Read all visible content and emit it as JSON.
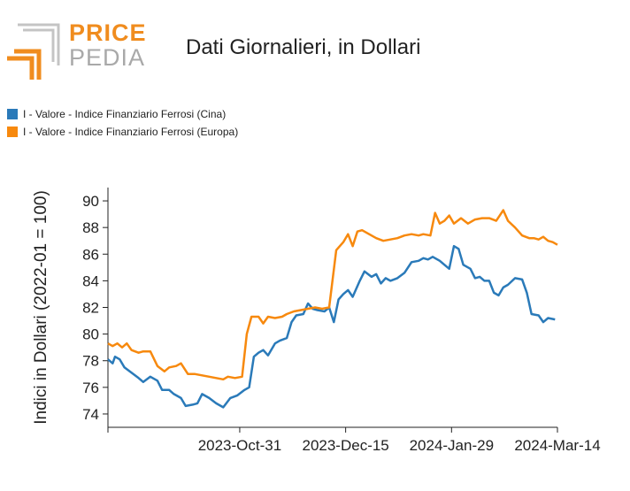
{
  "logo": {
    "line1": "PRICE",
    "line2": "PEDIA",
    "colors": {
      "orange": "#f08c1e",
      "grey": "#b3b3b3"
    }
  },
  "title": "Dati Giornalieri, in Dollari",
  "legend": [
    {
      "label": "I - Valore - Indice Finanziario Ferrosi (Cina)",
      "color": "#2a7ab9"
    },
    {
      "label": "I - Valore - Indice Finanziario Ferrosi (Europa)",
      "color": "#f7890e"
    }
  ],
  "chart_data": {
    "type": "line",
    "ylabel": "Indici in Dollari (2022-01 = 100)",
    "xlabel": "",
    "ylim": [
      73,
      91
    ],
    "yticks": [
      74,
      76,
      78,
      80,
      82,
      84,
      86,
      88,
      90
    ],
    "xlim": [
      "2023-09-05",
      "2024-03-14"
    ],
    "xticks": [
      {
        "date": "2023-10-31",
        "label": "2023-Oct-31"
      },
      {
        "date": "2023-12-15",
        "label": "2023-Dec-15"
      },
      {
        "date": "2024-01-29",
        "label": "2024-Jan-29"
      },
      {
        "date": "2024-03-14",
        "label": "2024-Mar-14"
      }
    ],
    "series": [
      {
        "name": "I - Valore - Indice Finanziario Ferrosi (Cina)",
        "color": "#2a7ab9",
        "points": [
          [
            "2023-09-05",
            78.1
          ],
          [
            "2023-09-07",
            77.8
          ],
          [
            "2023-09-08",
            78.3
          ],
          [
            "2023-09-10",
            78.1
          ],
          [
            "2023-09-12",
            77.5
          ],
          [
            "2023-09-15",
            77.1
          ],
          [
            "2023-09-18",
            76.7
          ],
          [
            "2023-09-20",
            76.4
          ],
          [
            "2023-09-23",
            76.8
          ],
          [
            "2023-09-26",
            76.5
          ],
          [
            "2023-09-28",
            75.8
          ],
          [
            "2023-10-01",
            75.8
          ],
          [
            "2023-10-03",
            75.5
          ],
          [
            "2023-10-06",
            75.2
          ],
          [
            "2023-10-08",
            74.6
          ],
          [
            "2023-10-11",
            74.7
          ],
          [
            "2023-10-13",
            74.8
          ],
          [
            "2023-10-15",
            75.5
          ],
          [
            "2023-10-18",
            75.2
          ],
          [
            "2023-10-21",
            74.8
          ],
          [
            "2023-10-24",
            74.5
          ],
          [
            "2023-10-27",
            75.2
          ],
          [
            "2023-10-30",
            75.4
          ],
          [
            "2023-11-02",
            75.8
          ],
          [
            "2023-11-04",
            76.0
          ],
          [
            "2023-11-06",
            78.3
          ],
          [
            "2023-11-08",
            78.6
          ],
          [
            "2023-11-10",
            78.8
          ],
          [
            "2023-11-12",
            78.4
          ],
          [
            "2023-11-15",
            79.3
          ],
          [
            "2023-11-17",
            79.5
          ],
          [
            "2023-11-20",
            79.7
          ],
          [
            "2023-11-22",
            80.9
          ],
          [
            "2023-11-24",
            81.4
          ],
          [
            "2023-11-27",
            81.5
          ],
          [
            "2023-11-29",
            82.3
          ],
          [
            "2023-12-01",
            81.9
          ],
          [
            "2023-12-03",
            81.8
          ],
          [
            "2023-12-06",
            81.7
          ],
          [
            "2023-12-08",
            82.0
          ],
          [
            "2023-12-10",
            80.9
          ],
          [
            "2023-12-12",
            82.6
          ],
          [
            "2023-12-14",
            83.0
          ],
          [
            "2023-12-16",
            83.3
          ],
          [
            "2023-12-18",
            82.8
          ],
          [
            "2023-12-21",
            84.0
          ],
          [
            "2023-12-23",
            84.7
          ],
          [
            "2023-12-26",
            84.3
          ],
          [
            "2023-12-28",
            84.5
          ],
          [
            "2023-12-30",
            83.8
          ],
          [
            "2024-01-01",
            84.2
          ],
          [
            "2024-01-03",
            84.0
          ],
          [
            "2024-01-06",
            84.2
          ],
          [
            "2024-01-09",
            84.6
          ],
          [
            "2024-01-12",
            85.4
          ],
          [
            "2024-01-15",
            85.5
          ],
          [
            "2024-01-17",
            85.7
          ],
          [
            "2024-01-19",
            85.6
          ],
          [
            "2024-01-21",
            85.8
          ],
          [
            "2024-01-24",
            85.5
          ],
          [
            "2024-01-26",
            85.2
          ],
          [
            "2024-01-28",
            84.9
          ],
          [
            "2024-01-30",
            86.6
          ],
          [
            "2024-02-01",
            86.4
          ],
          [
            "2024-02-03",
            85.2
          ],
          [
            "2024-02-06",
            84.9
          ],
          [
            "2024-02-08",
            84.2
          ],
          [
            "2024-02-10",
            84.3
          ],
          [
            "2024-02-12",
            84.0
          ],
          [
            "2024-02-14",
            84.0
          ],
          [
            "2024-02-16",
            83.1
          ],
          [
            "2024-02-18",
            82.9
          ],
          [
            "2024-02-20",
            83.5
          ],
          [
            "2024-02-22",
            83.7
          ],
          [
            "2024-02-25",
            84.2
          ],
          [
            "2024-02-28",
            84.1
          ],
          [
            "2024-03-01",
            83.1
          ],
          [
            "2024-03-03",
            81.5
          ],
          [
            "2024-03-06",
            81.4
          ],
          [
            "2024-03-08",
            80.9
          ],
          [
            "2024-03-10",
            81.2
          ],
          [
            "2024-03-13",
            81.1
          ]
        ]
      },
      {
        "name": "I - Valore - Indice Finanziario Ferrosi (Europa)",
        "color": "#f7890e",
        "points": [
          [
            "2023-09-05",
            79.3
          ],
          [
            "2023-09-07",
            79.1
          ],
          [
            "2023-09-09",
            79.3
          ],
          [
            "2023-09-11",
            79.0
          ],
          [
            "2023-09-13",
            79.3
          ],
          [
            "2023-09-15",
            78.8
          ],
          [
            "2023-09-18",
            78.6
          ],
          [
            "2023-09-20",
            78.7
          ],
          [
            "2023-09-23",
            78.7
          ],
          [
            "2023-09-26",
            77.6
          ],
          [
            "2023-09-29",
            77.2
          ],
          [
            "2023-10-01",
            77.5
          ],
          [
            "2023-10-04",
            77.6
          ],
          [
            "2023-10-06",
            77.8
          ],
          [
            "2023-10-09",
            77.0
          ],
          [
            "2023-10-12",
            77.0
          ],
          [
            "2023-10-15",
            76.9
          ],
          [
            "2023-10-18",
            76.8
          ],
          [
            "2023-10-21",
            76.7
          ],
          [
            "2023-10-24",
            76.6
          ],
          [
            "2023-10-26",
            76.8
          ],
          [
            "2023-10-29",
            76.7
          ],
          [
            "2023-11-01",
            76.8
          ],
          [
            "2023-11-03",
            80.0
          ],
          [
            "2023-11-05",
            81.3
          ],
          [
            "2023-11-08",
            81.3
          ],
          [
            "2023-11-10",
            80.8
          ],
          [
            "2023-11-12",
            81.3
          ],
          [
            "2023-11-15",
            81.2
          ],
          [
            "2023-11-18",
            81.3
          ],
          [
            "2023-11-20",
            81.5
          ],
          [
            "2023-11-23",
            81.7
          ],
          [
            "2023-11-26",
            81.8
          ],
          [
            "2023-11-29",
            81.9
          ],
          [
            "2023-12-02",
            82.0
          ],
          [
            "2023-12-05",
            81.9
          ],
          [
            "2023-12-08",
            82.0
          ],
          [
            "2023-12-11",
            86.3
          ],
          [
            "2023-12-14",
            86.9
          ],
          [
            "2023-12-16",
            87.5
          ],
          [
            "2023-12-18",
            86.6
          ],
          [
            "2023-12-20",
            87.7
          ],
          [
            "2023-12-22",
            87.8
          ],
          [
            "2023-12-25",
            87.5
          ],
          [
            "2023-12-28",
            87.2
          ],
          [
            "2023-12-31",
            87.0
          ],
          [
            "2024-01-03",
            87.1
          ],
          [
            "2024-01-06",
            87.2
          ],
          [
            "2024-01-09",
            87.4
          ],
          [
            "2024-01-12",
            87.5
          ],
          [
            "2024-01-15",
            87.4
          ],
          [
            "2024-01-17",
            87.5
          ],
          [
            "2024-01-20",
            87.4
          ],
          [
            "2024-01-22",
            89.1
          ],
          [
            "2024-01-24",
            88.3
          ],
          [
            "2024-01-26",
            88.5
          ],
          [
            "2024-01-28",
            88.9
          ],
          [
            "2024-01-30",
            88.3
          ],
          [
            "2024-02-02",
            88.7
          ],
          [
            "2024-02-05",
            88.3
          ],
          [
            "2024-02-08",
            88.6
          ],
          [
            "2024-02-11",
            88.7
          ],
          [
            "2024-02-14",
            88.7
          ],
          [
            "2024-02-17",
            88.5
          ],
          [
            "2024-02-20",
            89.3
          ],
          [
            "2024-02-22",
            88.5
          ],
          [
            "2024-02-25",
            88.0
          ],
          [
            "2024-02-28",
            87.4
          ],
          [
            "2024-03-02",
            87.2
          ],
          [
            "2024-03-04",
            87.2
          ],
          [
            "2024-03-06",
            87.1
          ],
          [
            "2024-03-08",
            87.3
          ],
          [
            "2024-03-10",
            87.0
          ],
          [
            "2024-03-12",
            86.9
          ],
          [
            "2024-03-14",
            86.7
          ]
        ]
      }
    ]
  }
}
